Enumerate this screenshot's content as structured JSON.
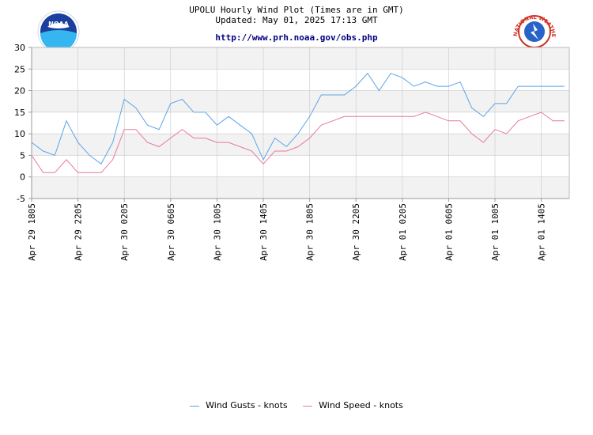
{
  "header": {
    "title_line1": "UPOLU Hourly Wind Plot (Times are in GMT)",
    "title_line2": "Updated: May 01, 2025 17:13 GMT",
    "url": "http://www.prh.noaa.gov/obs.php"
  },
  "logos": {
    "left": {
      "text": "NOAA",
      "icon": "noaa-logo-icon"
    },
    "right": {
      "text": "NATIONAL WEATHER SERVICE",
      "icon": "nws-logo-icon"
    }
  },
  "colors": {
    "gusts": "#5aa4e8",
    "speed": "#e8789c",
    "band": "#f2f2f2",
    "grid": "#c8c8c8"
  },
  "chart_data": {
    "type": "line",
    "ylim": [
      -5,
      30
    ],
    "yticks": [
      30,
      25,
      20,
      15,
      10,
      5,
      0,
      -5
    ],
    "xtick_labels": [
      "Apr 29 1805",
      "Apr 29 2205",
      "Apr 30 0205",
      "Apr 30 0605",
      "Apr 30 1005",
      "Apr 30 1405",
      "Apr 30 1805",
      "Apr 30 2205",
      "Apr 01 0205",
      "Apr 01 0605",
      "Apr 01 1005",
      "Apr 01 1405"
    ],
    "series": [
      {
        "name": "Wind Gusts - knots",
        "values": [
          8,
          6,
          5,
          13,
          8,
          5,
          3,
          8,
          18,
          16,
          12,
          11,
          17,
          18,
          15,
          15,
          12,
          14,
          12,
          10,
          4,
          9,
          7,
          10,
          14,
          19,
          19,
          19,
          21,
          24,
          20,
          24,
          23,
          21,
          22,
          21,
          21,
          22,
          16,
          14,
          17,
          17,
          21,
          21,
          21,
          21,
          21
        ]
      },
      {
        "name": "Wind Speed - knots",
        "values": [
          5,
          1,
          1,
          4,
          1,
          1,
          1,
          4,
          11,
          11,
          8,
          7,
          9,
          11,
          9,
          9,
          8,
          8,
          7,
          6,
          3,
          6,
          6,
          7,
          9,
          12,
          13,
          14,
          14,
          14,
          14,
          14,
          14,
          14,
          15,
          14,
          13,
          13,
          10,
          8,
          11,
          10,
          13,
          14,
          15,
          13,
          13
        ]
      }
    ]
  }
}
